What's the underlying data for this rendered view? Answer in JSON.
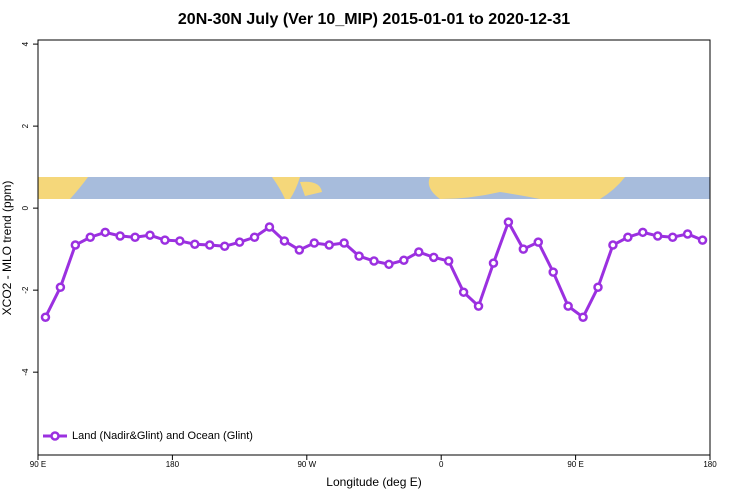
{
  "chart_data": {
    "type": "line",
    "title": "20N-30N July (Ver 10_MIP)   2015-01-01 to 2020-12-31",
    "x_label": "Longitude (deg E)",
    "y_label": "XCO2 - MLO trend (ppm)",
    "x": [
      95,
      105,
      115,
      125,
      135,
      145,
      155,
      165,
      175,
      185,
      195,
      205,
      215,
      225,
      235,
      245,
      255,
      265,
      275,
      285,
      295,
      305,
      315,
      325,
      335,
      345,
      355,
      365,
      375,
      385,
      395,
      405,
      415,
      425,
      435,
      445,
      455,
      465,
      475,
      485,
      495,
      505,
      515,
      525,
      535
    ],
    "series": [
      {
        "name": "Land (Nadir&Glint) and Ocean (Glint)",
        "color": "#9b30e0",
        "values": [
          -2.66,
          -1.93,
          -0.9,
          -0.71,
          -0.59,
          -0.68,
          -0.71,
          -0.66,
          -0.78,
          -0.8,
          -0.88,
          -0.9,
          -0.93,
          -0.83,
          -0.71,
          -0.46,
          -0.8,
          -1.02,
          -0.85,
          -0.9,
          -0.85,
          -1.17,
          -1.29,
          -1.37,
          -1.27,
          -1.07,
          -1.2,
          -1.29,
          -2.05,
          -2.39,
          -1.34,
          -0.34,
          -1.0,
          -0.83,
          -1.56,
          -2.39,
          -2.66,
          -1.93,
          -0.9,
          -0.71,
          -0.59,
          -0.68,
          -0.71,
          -0.63,
          -0.78
        ]
      }
    ],
    "xlim": [
      90,
      540
    ],
    "xticks": [
      {
        "value": 90,
        "label": "90 E"
      },
      {
        "value": 180,
        "label": "180"
      },
      {
        "value": 270,
        "label": "90 W"
      },
      {
        "value": 360,
        "label": "0"
      },
      {
        "value": 450,
        "label": "90 E"
      },
      {
        "value": 540,
        "label": "180"
      }
    ],
    "ylim": [
      -6.02,
      4.1
    ],
    "yticks": [
      -4,
      -2,
      0,
      2,
      4
    ],
    "legend": "bottom-left"
  }
}
